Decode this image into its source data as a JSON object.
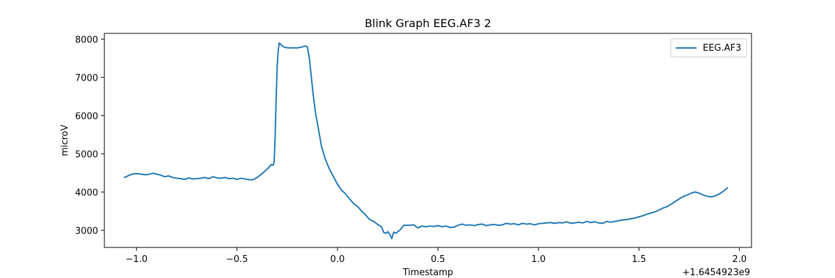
{
  "chart_data": {
    "type": "line",
    "title": "Blink Graph EEG.AF3 2",
    "xlabel": "Timestamp",
    "ylabel": "microV",
    "offset_label": "+1.6454923e9",
    "xlim": [
      -1.16,
      2.06
    ],
    "ylim": [
      2550,
      8150
    ],
    "x_ticks": [
      -1.0,
      -0.5,
      0.0,
      0.5,
      1.0,
      1.5,
      2.0
    ],
    "x_tick_labels": [
      "−1.0",
      "−0.5",
      "0.0",
      "0.5",
      "1.0",
      "1.5",
      "2.0"
    ],
    "y_ticks": [
      3000,
      4000,
      5000,
      6000,
      7000,
      8000
    ],
    "y_tick_labels": [
      "3000",
      "4000",
      "5000",
      "6000",
      "7000",
      "8000"
    ],
    "grid": false,
    "legend": {
      "position": "top-right",
      "entries": [
        "EEG.AF3"
      ]
    },
    "series": [
      {
        "name": "EEG.AF3",
        "color": "#1f77b4",
        "points": [
          [
            -1.06,
            4380
          ],
          [
            -1.04,
            4430
          ],
          [
            -1.02,
            4470
          ],
          [
            -1.0,
            4480
          ],
          [
            -0.98,
            4470
          ],
          [
            -0.96,
            4450
          ],
          [
            -0.94,
            4460
          ],
          [
            -0.92,
            4490
          ],
          [
            -0.9,
            4470
          ],
          [
            -0.88,
            4440
          ],
          [
            -0.86,
            4400
          ],
          [
            -0.84,
            4420
          ],
          [
            -0.82,
            4380
          ],
          [
            -0.8,
            4360
          ],
          [
            -0.78,
            4350
          ],
          [
            -0.76,
            4330
          ],
          [
            -0.74,
            4370
          ],
          [
            -0.72,
            4340
          ],
          [
            -0.7,
            4350
          ],
          [
            -0.68,
            4360
          ],
          [
            -0.66,
            4380
          ],
          [
            -0.64,
            4350
          ],
          [
            -0.62,
            4400
          ],
          [
            -0.6,
            4370
          ],
          [
            -0.58,
            4360
          ],
          [
            -0.56,
            4380
          ],
          [
            -0.54,
            4350
          ],
          [
            -0.52,
            4360
          ],
          [
            -0.5,
            4330
          ],
          [
            -0.48,
            4360
          ],
          [
            -0.46,
            4340
          ],
          [
            -0.44,
            4320
          ],
          [
            -0.42,
            4320
          ],
          [
            -0.4,
            4380
          ],
          [
            -0.38,
            4460
          ],
          [
            -0.36,
            4550
          ],
          [
            -0.34,
            4650
          ],
          [
            -0.33,
            4720
          ],
          [
            -0.32,
            4700
          ],
          [
            -0.315,
            4800
          ],
          [
            -0.31,
            5500
          ],
          [
            -0.305,
            6500
          ],
          [
            -0.3,
            7300
          ],
          [
            -0.295,
            7700
          ],
          [
            -0.29,
            7900
          ],
          [
            -0.28,
            7850
          ],
          [
            -0.27,
            7800
          ],
          [
            -0.26,
            7780
          ],
          [
            -0.24,
            7770
          ],
          [
            -0.22,
            7770
          ],
          [
            -0.2,
            7770
          ],
          [
            -0.18,
            7790
          ],
          [
            -0.16,
            7820
          ],
          [
            -0.15,
            7800
          ],
          [
            -0.14,
            7500
          ],
          [
            -0.13,
            7000
          ],
          [
            -0.12,
            6500
          ],
          [
            -0.11,
            6100
          ],
          [
            -0.1,
            5800
          ],
          [
            -0.09,
            5500
          ],
          [
            -0.08,
            5200
          ],
          [
            -0.06,
            4850
          ],
          [
            -0.04,
            4600
          ],
          [
            -0.02,
            4400
          ],
          [
            0.0,
            4200
          ],
          [
            0.02,
            4050
          ],
          [
            0.04,
            3950
          ],
          [
            0.06,
            3820
          ],
          [
            0.08,
            3700
          ],
          [
            0.1,
            3620
          ],
          [
            0.12,
            3500
          ],
          [
            0.14,
            3400
          ],
          [
            0.16,
            3280
          ],
          [
            0.18,
            3230
          ],
          [
            0.2,
            3150
          ],
          [
            0.22,
            3080
          ],
          [
            0.23,
            2940
          ],
          [
            0.24,
            2920
          ],
          [
            0.25,
            2960
          ],
          [
            0.26,
            2900
          ],
          [
            0.27,
            2780
          ],
          [
            0.28,
            2950
          ],
          [
            0.29,
            2920
          ],
          [
            0.31,
            3000
          ],
          [
            0.33,
            3130
          ],
          [
            0.36,
            3130
          ],
          [
            0.38,
            3140
          ],
          [
            0.4,
            3060
          ],
          [
            0.42,
            3110
          ],
          [
            0.44,
            3090
          ],
          [
            0.46,
            3110
          ],
          [
            0.48,
            3100
          ],
          [
            0.5,
            3120
          ],
          [
            0.52,
            3090
          ],
          [
            0.54,
            3110
          ],
          [
            0.56,
            3070
          ],
          [
            0.58,
            3080
          ],
          [
            0.6,
            3130
          ],
          [
            0.62,
            3160
          ],
          [
            0.64,
            3130
          ],
          [
            0.66,
            3140
          ],
          [
            0.68,
            3120
          ],
          [
            0.7,
            3150
          ],
          [
            0.72,
            3160
          ],
          [
            0.74,
            3120
          ],
          [
            0.76,
            3140
          ],
          [
            0.78,
            3150
          ],
          [
            0.8,
            3130
          ],
          [
            0.82,
            3140
          ],
          [
            0.84,
            3180
          ],
          [
            0.86,
            3160
          ],
          [
            0.88,
            3170
          ],
          [
            0.9,
            3140
          ],
          [
            0.92,
            3180
          ],
          [
            0.94,
            3160
          ],
          [
            0.96,
            3170
          ],
          [
            0.98,
            3140
          ],
          [
            1.0,
            3170
          ],
          [
            1.02,
            3180
          ],
          [
            1.04,
            3190
          ],
          [
            1.06,
            3200
          ],
          [
            1.08,
            3180
          ],
          [
            1.1,
            3200
          ],
          [
            1.12,
            3190
          ],
          [
            1.14,
            3220
          ],
          [
            1.16,
            3180
          ],
          [
            1.18,
            3190
          ],
          [
            1.2,
            3210
          ],
          [
            1.22,
            3190
          ],
          [
            1.24,
            3230
          ],
          [
            1.26,
            3200
          ],
          [
            1.28,
            3220
          ],
          [
            1.3,
            3190
          ],
          [
            1.32,
            3180
          ],
          [
            1.34,
            3230
          ],
          [
            1.36,
            3210
          ],
          [
            1.38,
            3230
          ],
          [
            1.4,
            3250
          ],
          [
            1.42,
            3270
          ],
          [
            1.44,
            3280
          ],
          [
            1.46,
            3300
          ],
          [
            1.48,
            3320
          ],
          [
            1.5,
            3350
          ],
          [
            1.52,
            3380
          ],
          [
            1.54,
            3420
          ],
          [
            1.56,
            3450
          ],
          [
            1.58,
            3480
          ],
          [
            1.6,
            3530
          ],
          [
            1.62,
            3580
          ],
          [
            1.64,
            3620
          ],
          [
            1.66,
            3680
          ],
          [
            1.68,
            3750
          ],
          [
            1.7,
            3820
          ],
          [
            1.72,
            3880
          ],
          [
            1.74,
            3920
          ],
          [
            1.76,
            3970
          ],
          [
            1.78,
            4000
          ],
          [
            1.8,
            3970
          ],
          [
            1.82,
            3920
          ],
          [
            1.84,
            3890
          ],
          [
            1.86,
            3870
          ],
          [
            1.88,
            3900
          ],
          [
            1.9,
            3950
          ],
          [
            1.92,
            4020
          ],
          [
            1.94,
            4110
          ]
        ]
      }
    ]
  }
}
